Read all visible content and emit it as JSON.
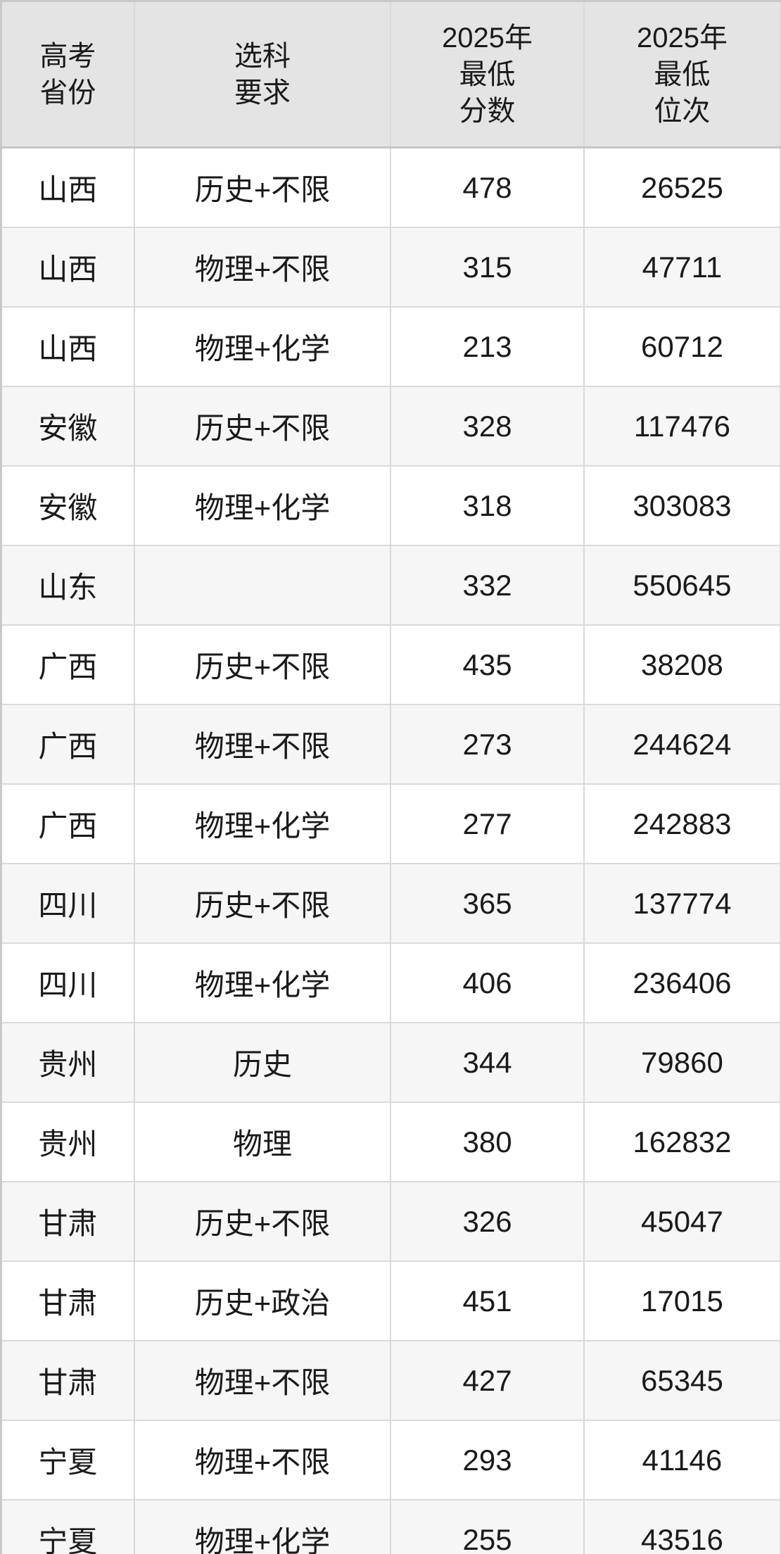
{
  "colors": {
    "header_bg": "#e4e4e4",
    "row_odd_bg": "#ffffff",
    "row_even_bg": "#f6f6f6",
    "border": "#dadada",
    "outer_border": "#c9c9c9",
    "text": "#1a1a1a"
  },
  "table": {
    "headers": [
      {
        "id": "province",
        "label": "高考\n省份"
      },
      {
        "id": "requirement",
        "label": "选科\n要求"
      },
      {
        "id": "min_score",
        "label": "2025年\n最低\n分数"
      },
      {
        "id": "min_rank",
        "label": "2025年\n最低\n位次"
      }
    ]
  },
  "chart_data": {
    "type": "table",
    "columns": [
      "高考省份",
      "选科要求",
      "2025年最低分数",
      "2025年最低位次"
    ],
    "rows": [
      {
        "province": "山西",
        "requirement": "历史+不限",
        "min_score": "478",
        "min_rank": "26525"
      },
      {
        "province": "山西",
        "requirement": "物理+不限",
        "min_score": "315",
        "min_rank": "47711"
      },
      {
        "province": "山西",
        "requirement": "物理+化学",
        "min_score": "213",
        "min_rank": "60712"
      },
      {
        "province": "安徽",
        "requirement": "历史+不限",
        "min_score": "328",
        "min_rank": "117476"
      },
      {
        "province": "安徽",
        "requirement": "物理+化学",
        "min_score": "318",
        "min_rank": "303083"
      },
      {
        "province": "山东",
        "requirement": "",
        "min_score": "332",
        "min_rank": "550645"
      },
      {
        "province": "广西",
        "requirement": "历史+不限",
        "min_score": "435",
        "min_rank": "38208"
      },
      {
        "province": "广西",
        "requirement": "物理+不限",
        "min_score": "273",
        "min_rank": "244624"
      },
      {
        "province": "广西",
        "requirement": "物理+化学",
        "min_score": "277",
        "min_rank": "242883"
      },
      {
        "province": "四川",
        "requirement": "历史+不限",
        "min_score": "365",
        "min_rank": "137774"
      },
      {
        "province": "四川",
        "requirement": "物理+化学",
        "min_score": "406",
        "min_rank": "236406"
      },
      {
        "province": "贵州",
        "requirement": "历史",
        "min_score": "344",
        "min_rank": "79860"
      },
      {
        "province": "贵州",
        "requirement": "物理",
        "min_score": "380",
        "min_rank": "162832"
      },
      {
        "province": "甘肃",
        "requirement": "历史+不限",
        "min_score": "326",
        "min_rank": "45047"
      },
      {
        "province": "甘肃",
        "requirement": "历史+政治",
        "min_score": "451",
        "min_rank": "17015"
      },
      {
        "province": "甘肃",
        "requirement": "物理+不限",
        "min_score": "427",
        "min_rank": "65345"
      },
      {
        "province": "宁夏",
        "requirement": "物理+不限",
        "min_score": "293",
        "min_rank": "41146"
      },
      {
        "province": "宁夏",
        "requirement": "物理+化学",
        "min_score": "255",
        "min_rank": "43516"
      }
    ]
  }
}
